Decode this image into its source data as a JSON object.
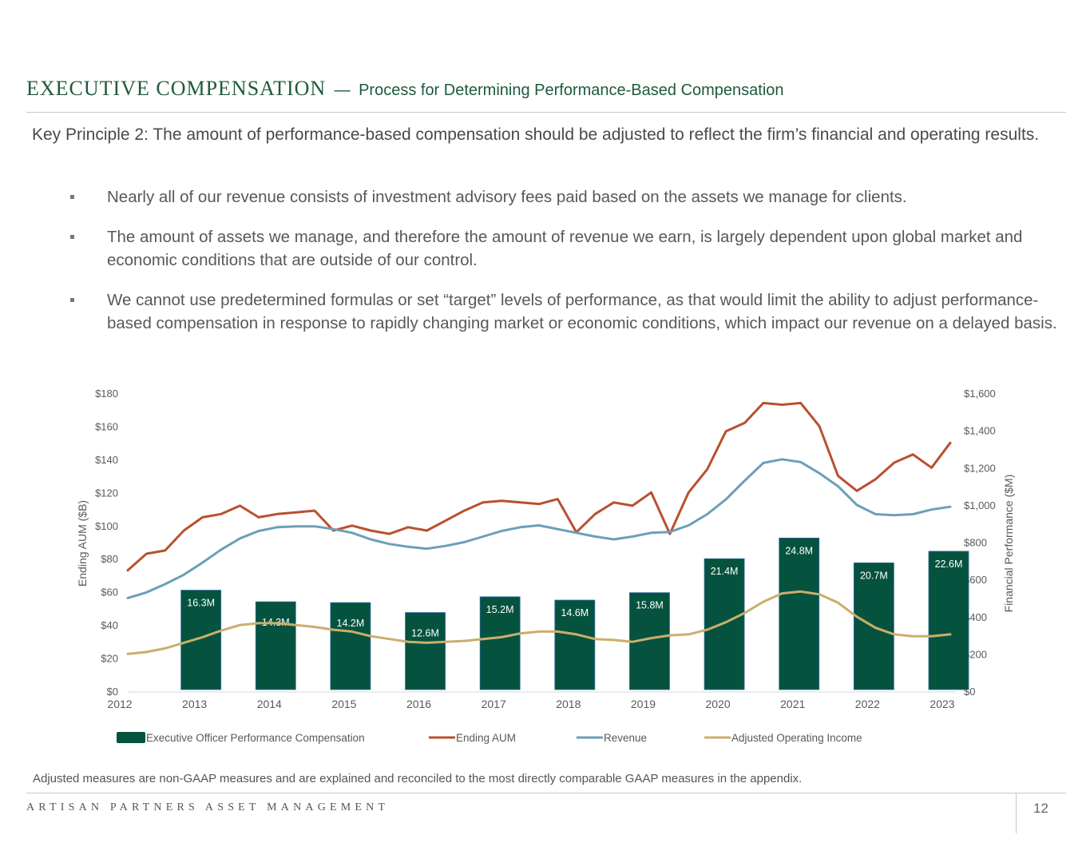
{
  "header": {
    "title": "EXECUTIVE COMPENSATION",
    "separator": "—",
    "subtitle": "Process for Determining Performance-Based Compensation"
  },
  "principle": "Key Principle 2:  The amount of performance-based compensation should be adjusted to reflect the firm’s financial and operating results.",
  "bullets": [
    "Nearly all of our revenue consists of investment advisory fees paid based on the assets we manage for clients.",
    "The amount of assets we manage, and therefore the amount of revenue we earn, is largely dependent upon global market and economic conditions that are outside of our control.",
    "We cannot use predetermined formulas or set “target” levels of performance, as that would limit the ability to adjust performance-based compensation in response to rapidly changing market or economic conditions, which impact our revenue on a delayed basis."
  ],
  "chart_data": {
    "type": "bar+line",
    "title": "",
    "xlabel": "",
    "ylabel_left": "Ending AUM ($B)",
    "ylabel_right": "Financial Performance ($M)",
    "ylim_left": [
      0,
      180
    ],
    "ylim_right": [
      0,
      1600
    ],
    "yticks_left": [
      "$0",
      "$20",
      "$40",
      "$60",
      "$80",
      "$100",
      "$120",
      "$140",
      "$160",
      "$180"
    ],
    "yticks_right": [
      "$0",
      "$200",
      "$400",
      "$600",
      "$800",
      "$1,000",
      "$1,200",
      "$1,400",
      "$1,600"
    ],
    "x_ticks": [
      "2012",
      "2013",
      "2014",
      "2015",
      "2016",
      "2017",
      "2018",
      "2019",
      "2020",
      "2021",
      "2022",
      "2023"
    ],
    "x_range": [
      2012,
      2023
    ],
    "grid": false,
    "legend_position": "bottom",
    "bars": {
      "name": "Executive Officer Performance Compensation",
      "color": "#05533f",
      "axis": "left",
      "categories": [
        "2013",
        "2014",
        "2015",
        "2016",
        "2017",
        "2018",
        "2019",
        "2020",
        "2021",
        "2022",
        "2023"
      ],
      "labels": [
        "16.3M",
        "14.3M",
        "14.2M",
        "12.6M",
        "15.2M",
        "14.6M",
        "15.8M",
        "21.4M",
        "24.8M",
        "20.7M",
        "22.6M"
      ],
      "values": [
        16.3,
        14.3,
        14.2,
        12.6,
        15.2,
        14.6,
        15.8,
        21.4,
        24.8,
        20.7,
        22.6
      ],
      "heights_left_axis": [
        61,
        54,
        53.5,
        47.5,
        57,
        55,
        59.5,
        80,
        92.5,
        77.5,
        84.5
      ]
    },
    "series": [
      {
        "name": "Ending AUM",
        "color": "#b9502f",
        "axis": "left",
        "x": [
          2012,
          2012.25,
          2012.5,
          2012.75,
          2013,
          2013.25,
          2013.5,
          2013.75,
          2014,
          2014.25,
          2014.5,
          2014.75,
          2015,
          2015.25,
          2015.5,
          2015.75,
          2016,
          2016.25,
          2016.5,
          2016.75,
          2017,
          2017.25,
          2017.5,
          2017.75,
          2018,
          2018.25,
          2018.5,
          2018.75,
          2019,
          2019.25,
          2019.5,
          2019.75,
          2020,
          2020.25,
          2020.5,
          2020.75,
          2021,
          2021.25,
          2021.5,
          2021.75,
          2022,
          2022.25,
          2022.5,
          2022.75,
          2023
        ],
        "values": [
          73,
          83,
          85,
          97,
          105,
          107,
          112,
          105,
          107,
          108,
          109,
          97,
          100,
          97,
          95,
          99,
          97,
          103,
          109,
          114,
          115,
          114,
          113,
          116,
          96,
          107,
          114,
          112,
          120,
          95,
          120,
          134,
          157,
          162,
          174,
          173,
          174,
          160,
          130,
          121,
          128,
          138,
          143,
          135,
          150
        ]
      },
      {
        "name": "Revenue",
        "color": "#6b9fb8",
        "axis": "right",
        "x": [
          2012,
          2012.25,
          2012.5,
          2012.75,
          2013,
          2013.25,
          2013.5,
          2013.75,
          2014,
          2014.25,
          2014.5,
          2014.75,
          2015,
          2015.25,
          2015.5,
          2015.75,
          2016,
          2016.25,
          2016.5,
          2016.75,
          2017,
          2017.25,
          2017.5,
          2017.75,
          2018,
          2018.25,
          2018.5,
          2018.75,
          2019,
          2019.25,
          2019.5,
          2019.75,
          2020,
          2020.25,
          2020.5,
          2020.75,
          2021,
          2021.25,
          2021.5,
          2021.75,
          2022,
          2022.25,
          2022.5,
          2022.75,
          2023
        ],
        "values": [
          500,
          530,
          575,
          625,
          690,
          760,
          820,
          860,
          880,
          885,
          885,
          870,
          850,
          815,
          790,
          775,
          765,
          780,
          800,
          830,
          860,
          880,
          890,
          870,
          850,
          830,
          815,
          830,
          850,
          855,
          890,
          950,
          1030,
          1130,
          1225,
          1245,
          1230,
          1170,
          1100,
          1000,
          950,
          945,
          950,
          975,
          990
        ]
      },
      {
        "name": "Adjusted Operating Income",
        "color": "#cbae6c",
        "axis": "right",
        "x": [
          2012,
          2012.25,
          2012.5,
          2012.75,
          2013,
          2013.25,
          2013.5,
          2013.75,
          2014,
          2014.25,
          2014.5,
          2014.75,
          2015,
          2015.25,
          2015.5,
          2015.75,
          2016,
          2016.25,
          2016.5,
          2016.75,
          2017,
          2017.25,
          2017.5,
          2017.75,
          2018,
          2018.25,
          2018.5,
          2018.75,
          2019,
          2019.25,
          2019.5,
          2019.75,
          2020,
          2020.25,
          2020.5,
          2020.75,
          2021,
          2021.25,
          2021.5,
          2021.75,
          2022,
          2022.25,
          2022.5,
          2022.75,
          2023
        ],
        "values": [
          200,
          210,
          230,
          260,
          290,
          325,
          355,
          365,
          365,
          355,
          345,
          330,
          320,
          295,
          280,
          265,
          260,
          265,
          270,
          280,
          290,
          310,
          320,
          320,
          305,
          280,
          275,
          265,
          285,
          300,
          305,
          330,
          370,
          420,
          480,
          525,
          535,
          520,
          475,
          400,
          340,
          305,
          295,
          295,
          305
        ]
      }
    ]
  },
  "legend": [
    {
      "label": "Executive Officer Performance Compensation",
      "color": "#05533f",
      "shape": "box"
    },
    {
      "label": "Ending AUM",
      "color": "#b9502f",
      "shape": "line"
    },
    {
      "label": "Revenue",
      "color": "#6b9fb8",
      "shape": "line"
    },
    {
      "label": "Adjusted Operating Income",
      "color": "#cbae6c",
      "shape": "line"
    }
  ],
  "footnote": "Adjusted measures are non-GAAP measures and are explained and reconciled to the most directly comparable GAAP measures in the appendix.",
  "footer": {
    "brand": "ARTISAN PARTNERS ASSET MANAGEMENT",
    "page_number": "12"
  }
}
